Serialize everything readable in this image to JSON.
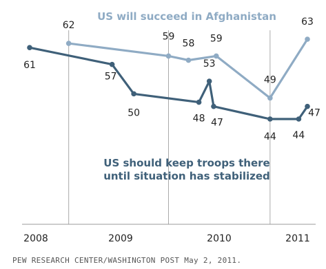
{
  "chart_data": {
    "type": "line",
    "x_ticks": [
      "2008",
      "2009",
      "2010",
      "2011"
    ],
    "ylim": [
      0,
      75
    ],
    "series": [
      {
        "name": "US will succeed in Afghanistan",
        "color": "#8fabc4",
        "points": [
          {
            "x": 2008.45,
            "y": 62,
            "label": "62"
          },
          {
            "x": 2009.6,
            "y": 59,
            "label": "59"
          },
          {
            "x": 2009.83,
            "y": 58,
            "label": "58"
          },
          {
            "x": 2010.15,
            "y": 59,
            "label": "59"
          },
          {
            "x": 2010.77,
            "y": 49,
            "label": "49"
          },
          {
            "x": 2011.2,
            "y": 63,
            "label": "63"
          }
        ]
      },
      {
        "name": "US should keep troops there until situation has stabilized",
        "color": "#3f6079",
        "points": [
          {
            "x": 2008.0,
            "y": 61,
            "label": "61"
          },
          {
            "x": 2008.95,
            "y": 57,
            "label": "57"
          },
          {
            "x": 2009.2,
            "y": 50,
            "label": "50"
          },
          {
            "x": 2009.95,
            "y": 48,
            "label": "48"
          },
          {
            "x": 2010.07,
            "y": 53,
            "label": "53"
          },
          {
            "x": 2010.12,
            "y": 47,
            "label": "47"
          },
          {
            "x": 2010.77,
            "y": 44,
            "label": "44"
          },
          {
            "x": 2011.1,
            "y": 44,
            "label": "44"
          },
          {
            "x": 2011.2,
            "y": 47,
            "label": "47"
          }
        ]
      }
    ],
    "series_titles": {
      "succeed": "US will succeed in Afghanistan",
      "troops_line1": "US should keep troops there",
      "troops_line2": "until situation has stabilized"
    }
  },
  "source_note": "PEW RESEARCH CENTER/WASHINGTON POST May 2, 2011."
}
